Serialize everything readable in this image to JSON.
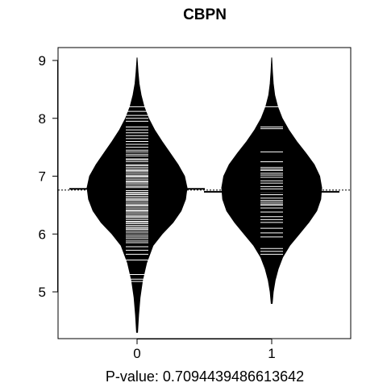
{
  "chart_data": {
    "type": "beanplot",
    "title": "CBPN",
    "xlabel": "P-value: 0.7094439486613642",
    "ylabel": "",
    "categories": [
      "0",
      "1"
    ],
    "ylim": [
      4.2,
      9.2
    ],
    "yticks": [
      5,
      6,
      7,
      8,
      9
    ],
    "overall_mean": 6.76,
    "groups": [
      {
        "name": "0",
        "mean": 6.78,
        "density": [
          [
            4.3,
            0.01
          ],
          [
            4.6,
            0.03
          ],
          [
            4.9,
            0.06
          ],
          [
            5.2,
            0.11
          ],
          [
            5.5,
            0.19
          ],
          [
            5.8,
            0.32
          ],
          [
            6.0,
            0.5
          ],
          [
            6.2,
            0.72
          ],
          [
            6.4,
            0.88
          ],
          [
            6.6,
            0.97
          ],
          [
            6.8,
            1.0
          ],
          [
            7.0,
            0.95
          ],
          [
            7.2,
            0.82
          ],
          [
            7.4,
            0.66
          ],
          [
            7.6,
            0.5
          ],
          [
            7.8,
            0.35
          ],
          [
            8.0,
            0.23
          ],
          [
            8.2,
            0.14
          ],
          [
            8.4,
            0.08
          ],
          [
            8.6,
            0.04
          ],
          [
            8.8,
            0.02
          ],
          [
            9.05,
            0.0
          ]
        ],
        "observations": [
          5.18,
          5.22,
          5.3,
          5.55,
          5.65,
          5.72,
          5.78,
          5.85,
          5.88,
          5.92,
          5.95,
          5.98,
          6.02,
          6.05,
          6.08,
          6.1,
          6.12,
          6.15,
          6.18,
          6.2,
          6.22,
          6.25,
          6.28,
          6.3,
          6.32,
          6.35,
          6.38,
          6.4,
          6.42,
          6.45,
          6.48,
          6.5,
          6.52,
          6.55,
          6.58,
          6.6,
          6.62,
          6.65,
          6.68,
          6.7,
          6.72,
          6.75,
          6.8,
          6.82,
          6.85,
          6.88,
          6.9,
          6.92,
          6.95,
          6.98,
          7.0,
          7.02,
          7.05,
          7.08,
          7.1,
          7.12,
          7.15,
          7.18,
          7.2,
          7.25,
          7.28,
          7.3,
          7.35,
          7.38,
          7.42,
          7.45,
          7.5,
          7.55,
          7.6,
          7.65,
          7.7,
          7.75,
          7.8,
          7.85,
          7.95,
          8.0,
          8.05,
          8.12,
          8.2
        ]
      },
      {
        "name": "1",
        "mean": 6.73,
        "density": [
          [
            4.8,
            0.01
          ],
          [
            5.0,
            0.03
          ],
          [
            5.2,
            0.07
          ],
          [
            5.4,
            0.13
          ],
          [
            5.6,
            0.22
          ],
          [
            5.8,
            0.36
          ],
          [
            6.0,
            0.55
          ],
          [
            6.2,
            0.74
          ],
          [
            6.4,
            0.9
          ],
          [
            6.6,
            0.98
          ],
          [
            6.8,
            1.0
          ],
          [
            7.0,
            0.96
          ],
          [
            7.2,
            0.85
          ],
          [
            7.4,
            0.68
          ],
          [
            7.6,
            0.5
          ],
          [
            7.8,
            0.34
          ],
          [
            8.0,
            0.21
          ],
          [
            8.2,
            0.12
          ],
          [
            8.4,
            0.06
          ],
          [
            8.6,
            0.03
          ],
          [
            8.8,
            0.015
          ],
          [
            9.05,
            0.0
          ]
        ],
        "observations": [
          5.65,
          5.7,
          5.75,
          5.95,
          6.02,
          6.1,
          6.2,
          6.25,
          6.3,
          6.38,
          6.45,
          6.5,
          6.52,
          6.55,
          6.58,
          6.62,
          6.68,
          6.72,
          6.78,
          6.82,
          6.88,
          6.92,
          6.98,
          7.02,
          7.05,
          7.1,
          7.12,
          7.15,
          7.25,
          7.42,
          7.82,
          7.85,
          8.2
        ]
      }
    ]
  }
}
